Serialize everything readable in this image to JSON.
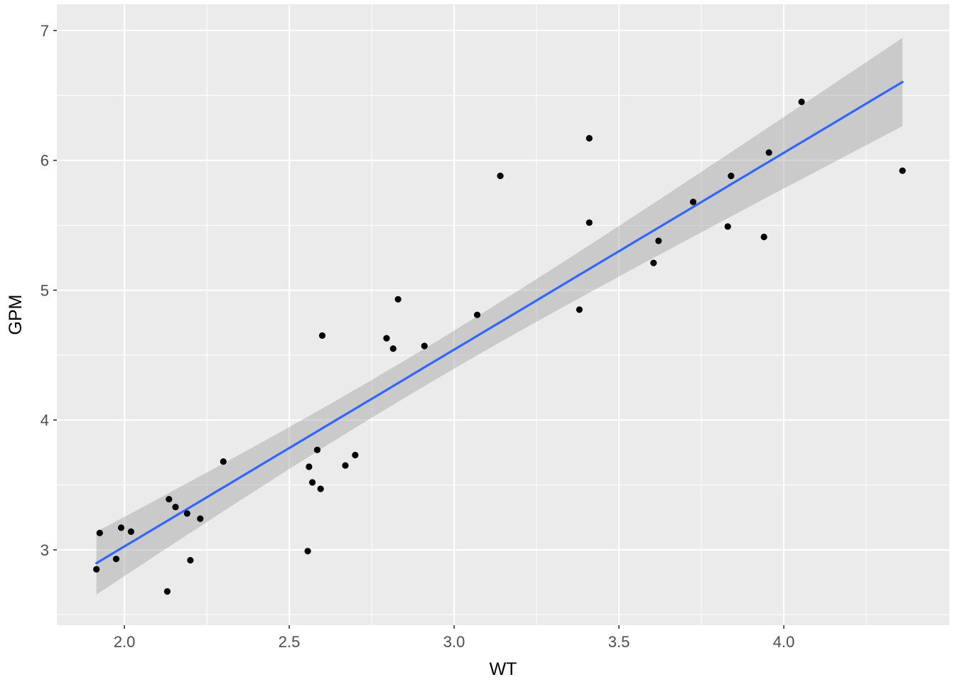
{
  "chart_data": {
    "type": "scatter",
    "title": "",
    "xlabel": "WT",
    "ylabel": "GPM",
    "x_domain": [
      1.795,
      4.502
    ],
    "y_domain": [
      2.42,
      7.202
    ],
    "x_ticks": [
      2.0,
      2.5,
      3.0,
      3.5,
      4.0
    ],
    "x_tick_labels": [
      "2.0",
      "2.5",
      "3.0",
      "3.5",
      "4.0"
    ],
    "y_ticks": [
      3,
      4,
      5,
      6,
      7
    ],
    "y_tick_labels": [
      "3",
      "4",
      "5",
      "6",
      "7"
    ],
    "x_minor": [
      2.25,
      2.75,
      3.25,
      3.75,
      4.25
    ],
    "y_minor": [
      2.5,
      3.5,
      4.5,
      5.5,
      6.5
    ],
    "grid": true,
    "legend": "none",
    "points": [
      [
        4.36,
        5.92
      ],
      [
        4.054,
        6.45
      ],
      [
        3.605,
        5.21
      ],
      [
        3.94,
        5.41
      ],
      [
        2.155,
        3.33
      ],
      [
        2.56,
        3.64
      ],
      [
        2.3,
        3.68
      ],
      [
        2.23,
        3.24
      ],
      [
        2.83,
        4.93
      ],
      [
        3.14,
        5.88
      ],
      [
        2.795,
        4.63
      ],
      [
        3.41,
        6.17
      ],
      [
        3.38,
        4.85
      ],
      [
        3.07,
        4.81
      ],
      [
        3.62,
        5.38
      ],
      [
        3.41,
        5.52
      ],
      [
        3.84,
        5.88
      ],
      [
        3.725,
        5.68
      ],
      [
        3.955,
        6.06
      ],
      [
        3.83,
        5.49
      ],
      [
        2.585,
        3.77
      ],
      [
        2.91,
        4.57
      ],
      [
        1.975,
        2.93
      ],
      [
        1.915,
        2.85
      ],
      [
        2.67,
        3.65
      ],
      [
        1.99,
        3.17
      ],
      [
        2.135,
        3.39
      ],
      [
        2.57,
        3.52
      ],
      [
        2.595,
        3.47
      ],
      [
        2.7,
        3.73
      ],
      [
        2.556,
        2.99
      ],
      [
        2.2,
        2.92
      ],
      [
        2.02,
        3.14
      ],
      [
        2.13,
        2.68
      ],
      [
        2.19,
        3.28
      ],
      [
        2.815,
        4.55
      ],
      [
        2.6,
        4.65
      ],
      [
        1.925,
        3.13
      ]
    ],
    "smooth": {
      "method": "lm",
      "level": 0.95,
      "t_critical": 2.0281,
      "line_color": "#3366FF",
      "ribbon_color": "#999999",
      "ribbon_opacity": 0.4
    },
    "colors": {
      "panel_bg": "#EBEBEB",
      "grid_major": "#FFFFFF",
      "grid_minor": "#FFFFFF",
      "point": "#000000",
      "axis_text": "#4D4D4D",
      "axis_title": "#000000",
      "tick_mark": "#333333"
    }
  }
}
